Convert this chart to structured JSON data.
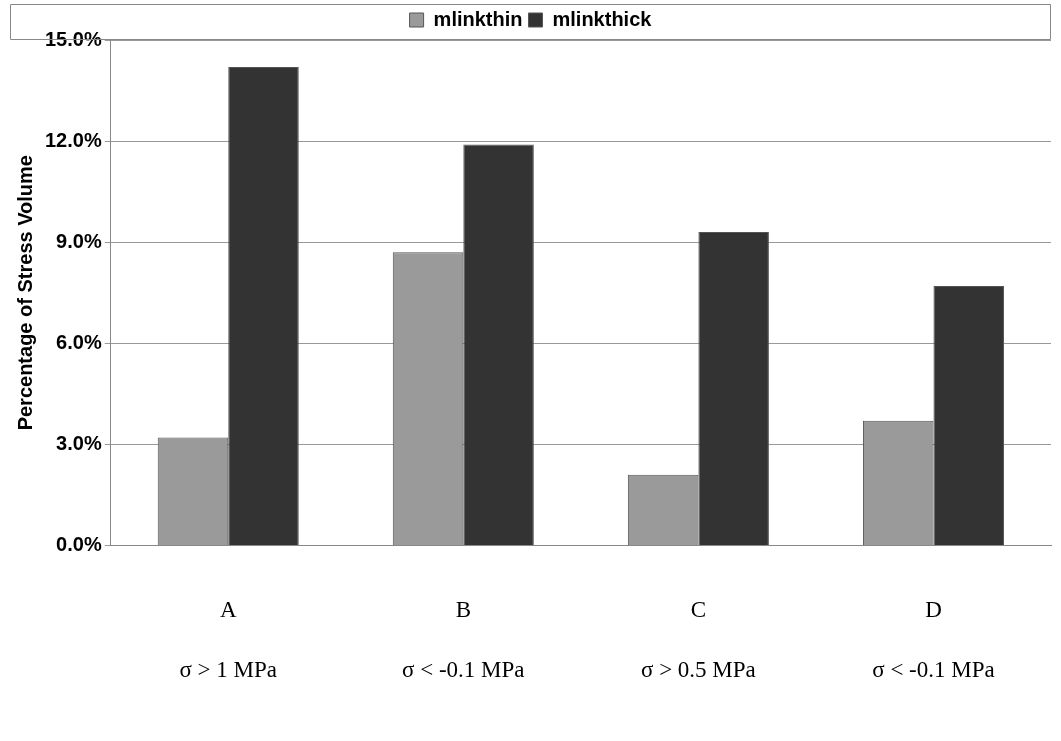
{
  "chart_data": {
    "type": "bar",
    "ylabel": "Percentage of Stress Volume",
    "categories": [
      "A\nσ > 1 MPa",
      "B\nσ < -0.1 MPa",
      "C\nσ > 0.5 MPa",
      "D\nσ < -0.1 MPa"
    ],
    "series": [
      {
        "name": "mlinkthin",
        "color": "#9a9a9a",
        "values": [
          3.2,
          8.7,
          2.1,
          3.7
        ]
      },
      {
        "name": "mlinkthick",
        "color": "#333333",
        "values": [
          14.2,
          11.9,
          9.3,
          7.7
        ]
      }
    ],
    "ylim": [
      0,
      15
    ],
    "yticks": [
      {
        "value": 0,
        "label": "0.0%"
      },
      {
        "value": 3,
        "label": "3.0%"
      },
      {
        "value": 6,
        "label": "6.0%"
      },
      {
        "value": 9,
        "label": "9.0%"
      },
      {
        "value": 12,
        "label": "12.0%"
      },
      {
        "value": 15,
        "label": "15.0%"
      }
    ],
    "grid": "y",
    "legend": "top"
  }
}
